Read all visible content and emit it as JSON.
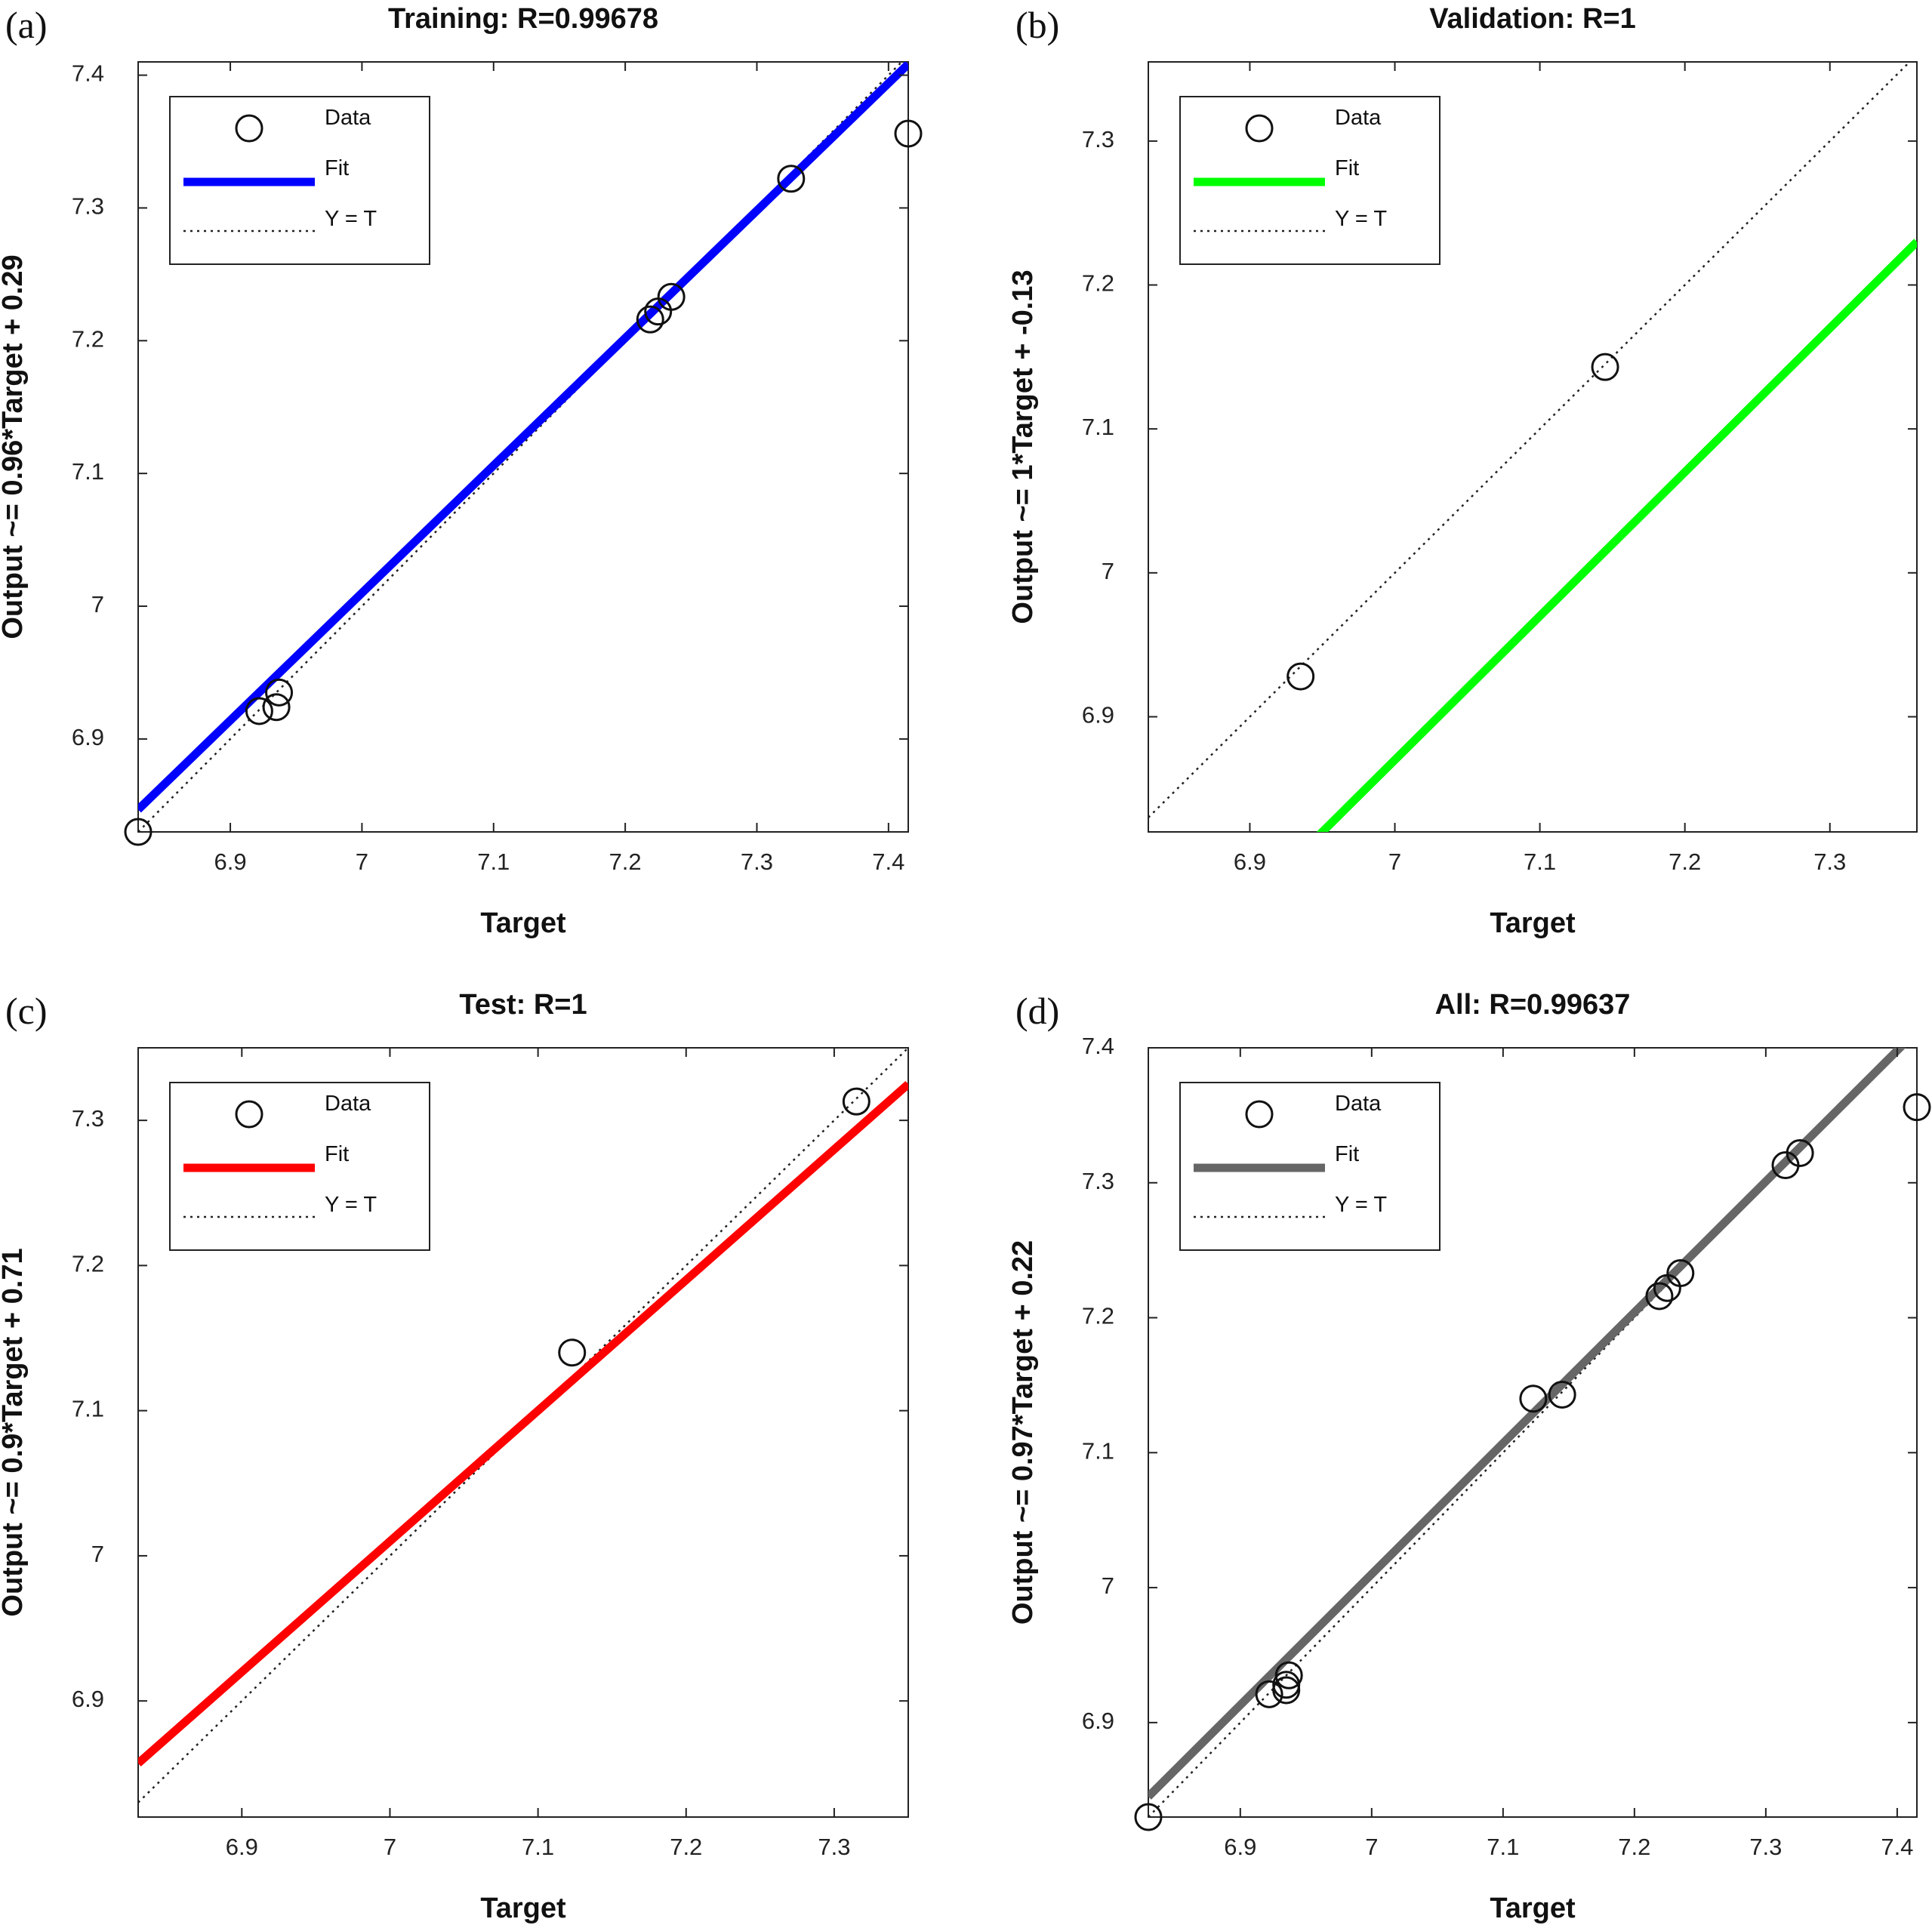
{
  "chart_data": [
    {
      "type": "scatter",
      "panel_label": "(a)",
      "title": "Training: R=0.99678",
      "xlabel": "Target",
      "ylabel": "Output ~= 0.96*Target + 0.29",
      "xlim": [
        6.83,
        7.415
      ],
      "ylim": [
        6.83,
        7.41
      ],
      "xticks": [
        6.9,
        7,
        7.1,
        7.2,
        7.3,
        7.4
      ],
      "xtick_labels": [
        "6.9",
        "7",
        "7.1",
        "7.2",
        "7.3",
        "7.4"
      ],
      "yticks": [
        6.9,
        7,
        7.1,
        7.2,
        7.3,
        7.4
      ],
      "ytick_labels": [
        "6.9",
        "7",
        "7.1",
        "7.2",
        "7.3",
        "7.4"
      ],
      "fit": {
        "slope": 0.96,
        "intercept": 0.29,
        "color": "#0000ff"
      },
      "points": [
        {
          "x": 6.83,
          "y": 6.83
        },
        {
          "x": 6.922,
          "y": 6.921
        },
        {
          "x": 6.935,
          "y": 6.924
        },
        {
          "x": 6.937,
          "y": 6.935
        },
        {
          "x": 7.219,
          "y": 7.216
        },
        {
          "x": 7.225,
          "y": 7.222
        },
        {
          "x": 7.235,
          "y": 7.233
        },
        {
          "x": 7.326,
          "y": 7.322
        },
        {
          "x": 7.415,
          "y": 7.356
        }
      ],
      "legend": {
        "data": "Data",
        "fit": "Fit",
        "yt": "Y = T",
        "placement": "top-left"
      },
      "grid": false
    },
    {
      "type": "scatter",
      "panel_label": "(b)",
      "title": "Validation: R=1",
      "xlabel": "Target",
      "ylabel": "Output ~= 1*Target + -0.13",
      "xlim": [
        6.83,
        7.36
      ],
      "ylim": [
        6.82,
        7.355
      ],
      "xticks": [
        6.9,
        7,
        7.1,
        7.2,
        7.3
      ],
      "xtick_labels": [
        "6.9",
        "7",
        "7.1",
        "7.2",
        "7.3"
      ],
      "yticks": [
        6.9,
        7,
        7.1,
        7.2,
        7.3
      ],
      "ytick_labels": [
        "6.9",
        "7",
        "7.1",
        "7.2",
        "7.3"
      ],
      "fit": {
        "slope": 1,
        "intercept": -0.13,
        "color": "#00ff00"
      },
      "points": [
        {
          "x": 6.935,
          "y": 6.928
        },
        {
          "x": 7.145,
          "y": 7.143
        }
      ],
      "legend": {
        "data": "Data",
        "fit": "Fit",
        "yt": "Y = T",
        "placement": "top-left"
      },
      "grid": false
    },
    {
      "type": "scatter",
      "panel_label": "(c)",
      "title": "Test: R=1",
      "xlabel": "Target",
      "ylabel": "Output ~= 0.9*Target + 0.71",
      "xlim": [
        6.83,
        7.35
      ],
      "ylim": [
        6.82,
        7.35
      ],
      "xticks": [
        6.9,
        7,
        7.1,
        7.2,
        7.3
      ],
      "xtick_labels": [
        "6.9",
        "7",
        "7.1",
        "7.2",
        "7.3"
      ],
      "yticks": [
        6.9,
        7,
        7.1,
        7.2,
        7.3
      ],
      "ytick_labels": [
        "6.9",
        "7",
        "7.1",
        "7.2",
        "7.3"
      ],
      "fit": {
        "slope": 0.9,
        "intercept": 0.71,
        "color": "#ff0000"
      },
      "points": [
        {
          "x": 7.123,
          "y": 7.14
        },
        {
          "x": 7.315,
          "y": 7.313
        }
      ],
      "legend": {
        "data": "Data",
        "fit": "Fit",
        "yt": "Y = T",
        "placement": "top-left"
      },
      "grid": false
    },
    {
      "type": "scatter",
      "panel_label": "(d)",
      "title": "All: R=0.99637",
      "xlabel": "Target",
      "ylabel": "Output ~= 0.97*Target + 0.22",
      "xlim": [
        6.83,
        7.415
      ],
      "ylim": [
        6.83,
        7.4
      ],
      "xticks": [
        6.9,
        7,
        7.1,
        7.2,
        7.3,
        7.4
      ],
      "xtick_labels": [
        "6.9",
        "7",
        "7.1",
        "7.2",
        "7.3",
        "7.4"
      ],
      "yticks": [
        6.9,
        7,
        7.1,
        7.2,
        7.3,
        7.4
      ],
      "ytick_labels": [
        "6.9",
        "7",
        "7.1",
        "7.2",
        "7.3",
        "7.4"
      ],
      "fit": {
        "slope": 0.97,
        "intercept": 0.22,
        "color": "#666666"
      },
      "points": [
        {
          "x": 6.83,
          "y": 6.83
        },
        {
          "x": 6.922,
          "y": 6.921
        },
        {
          "x": 6.935,
          "y": 6.924
        },
        {
          "x": 6.935,
          "y": 6.928
        },
        {
          "x": 6.937,
          "y": 6.935
        },
        {
          "x": 7.123,
          "y": 7.14
        },
        {
          "x": 7.145,
          "y": 7.143
        },
        {
          "x": 7.219,
          "y": 7.216
        },
        {
          "x": 7.225,
          "y": 7.222
        },
        {
          "x": 7.235,
          "y": 7.233
        },
        {
          "x": 7.315,
          "y": 7.313
        },
        {
          "x": 7.326,
          "y": 7.322
        },
        {
          "x": 7.415,
          "y": 7.356
        }
      ],
      "legend": {
        "data": "Data",
        "fit": "Fit",
        "yt": "Y = T",
        "placement": "top-left"
      },
      "grid": false
    }
  ]
}
